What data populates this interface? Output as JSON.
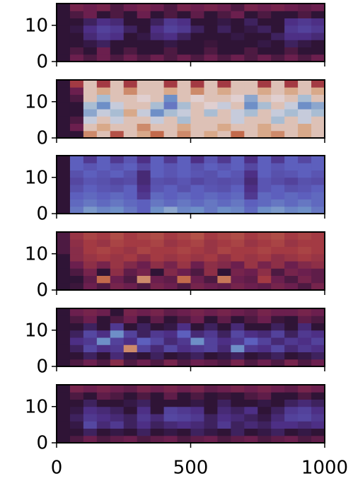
{
  "chart_data": [
    {
      "type": "heatmap",
      "xlim": [
        0,
        1000
      ],
      "ylim": [
        0,
        16
      ],
      "xticks": [
        0,
        500,
        1000
      ],
      "yticks": [
        0,
        10
      ],
      "show_xticklabels": false,
      "clim": [
        0,
        1
      ],
      "colormap": [
        "#e2d9e2",
        "#a9bdd3",
        "#6e8fc7",
        "#5d5fbd",
        "#4d2f85",
        "#2f1436",
        "#6b1f4e",
        "#a33a43",
        "#c26a4c",
        "#d8a98a",
        "#e2d9e2"
      ],
      "z": [
        [
          0.5,
          0.6,
          0.55,
          0.6,
          0.55,
          0.6,
          0.55,
          0.6,
          0.55,
          0.6,
          0.55,
          0.6,
          0.55,
          0.6,
          0.55,
          0.6,
          0.55,
          0.6,
          0.55,
          0.6
        ],
        [
          0.5,
          0.55,
          0.5,
          0.6,
          0.5,
          0.55,
          0.5,
          0.5,
          0.55,
          0.5,
          0.5,
          0.55,
          0.5,
          0.5,
          0.55,
          0.5,
          0.5,
          0.55,
          0.5,
          0.5
        ],
        [
          0.5,
          0.5,
          0.48,
          0.45,
          0.5,
          0.5,
          0.5,
          0.5,
          0.48,
          0.5,
          0.5,
          0.52,
          0.5,
          0.5,
          0.5,
          0.48,
          0.5,
          0.45,
          0.48,
          0.5
        ],
        [
          0.5,
          0.5,
          0.42,
          0.38,
          0.4,
          0.5,
          0.48,
          0.42,
          0.4,
          0.45,
          0.5,
          0.5,
          0.5,
          0.48,
          0.5,
          0.5,
          0.45,
          0.4,
          0.4,
          0.42
        ],
        [
          0.5,
          0.48,
          0.4,
          0.36,
          0.38,
          0.45,
          0.5,
          0.4,
          0.36,
          0.38,
          0.45,
          0.5,
          0.45,
          0.5,
          0.48,
          0.45,
          0.5,
          0.38,
          0.36,
          0.38
        ],
        [
          0.5,
          0.5,
          0.45,
          0.4,
          0.42,
          0.5,
          0.5,
          0.45,
          0.38,
          0.4,
          0.5,
          0.5,
          0.48,
          0.5,
          0.45,
          0.5,
          0.5,
          0.4,
          0.38,
          0.4
        ],
        [
          0.5,
          0.55,
          0.6,
          0.5,
          0.55,
          0.5,
          0.6,
          0.5,
          0.55,
          0.5,
          0.58,
          0.5,
          0.55,
          0.6,
          0.5,
          0.55,
          0.5,
          0.5,
          0.55,
          0.5
        ],
        [
          0.5,
          0.62,
          0.6,
          0.62,
          0.55,
          0.6,
          0.62,
          0.6,
          0.55,
          0.62,
          0.6,
          0.62,
          0.6,
          0.55,
          0.62,
          0.6,
          0.62,
          0.6,
          0.58,
          0.6
        ]
      ]
    },
    {
      "type": "heatmap",
      "xlim": [
        0,
        1000
      ],
      "ylim": [
        0,
        16
      ],
      "xticks": [
        0,
        500,
        1000
      ],
      "yticks": [
        0,
        10
      ],
      "show_xticklabels": false,
      "clim": [
        0,
        1
      ],
      "colormap": [
        "#e2d9e2",
        "#a9bdd3",
        "#6e8fc7",
        "#5d5fbd",
        "#4d2f85",
        "#2f1436",
        "#6b1f4e",
        "#a33a43",
        "#c26a4c",
        "#d8a98a",
        "#e2d9e2"
      ],
      "z": [
        [
          0.5,
          0.5,
          0.85,
          0.95,
          0.75,
          0.95,
          0.9,
          0.8,
          0.95,
          0.85,
          0.95,
          0.9,
          0.95,
          0.8,
          0.95,
          0.9,
          0.85,
          0.95,
          0.9,
          0.95
        ],
        [
          0.5,
          0.6,
          0.95,
          0.9,
          0.95,
          0.95,
          0.85,
          0.95,
          0.95,
          0.9,
          0.95,
          0.95,
          0.9,
          0.95,
          0.95,
          0.9,
          0.95,
          0.95,
          0.9,
          0.95
        ],
        [
          0.5,
          0.55,
          0.05,
          0.95,
          0.05,
          0.95,
          0.95,
          0.05,
          0.95,
          0.1,
          0.95,
          0.95,
          0.95,
          0.05,
          0.95,
          0.95,
          0.1,
          0.95,
          0.05,
          0.95
        ],
        [
          0.5,
          0.5,
          0.15,
          0.05,
          0.1,
          0.9,
          0.05,
          0.2,
          0.1,
          0.05,
          0.95,
          0.1,
          0.95,
          0.05,
          0.1,
          0.95,
          0.05,
          0.1,
          0.05,
          0.1
        ],
        [
          0.5,
          0.5,
          0.1,
          0.2,
          0.05,
          0.95,
          0.95,
          0.1,
          0.25,
          0.1,
          0.95,
          0.98,
          0.05,
          0.95,
          0.2,
          0.1,
          0.95,
          0.05,
          0.2,
          0.15
        ],
        [
          0.5,
          0.55,
          0.95,
          0.1,
          0.95,
          0.95,
          0.98,
          0.95,
          0.2,
          0.95,
          0.98,
          0.95,
          0.95,
          0.98,
          0.15,
          0.95,
          0.98,
          0.95,
          0.1,
          0.95
        ],
        [
          0.5,
          0.6,
          0.95,
          0.9,
          0.95,
          0.85,
          0.95,
          0.95,
          0.9,
          0.95,
          0.85,
          0.95,
          0.9,
          0.95,
          0.95,
          0.9,
          0.95,
          0.9,
          0.95,
          0.9
        ],
        [
          0.5,
          0.7,
          0.95,
          0.7,
          0.95,
          0.7,
          0.95,
          0.95,
          0.7,
          0.95,
          0.7,
          0.95,
          0.7,
          0.95,
          0.95,
          0.7,
          0.95,
          0.7,
          0.95,
          0.7
        ]
      ]
    },
    {
      "type": "heatmap",
      "xlim": [
        0,
        1000
      ],
      "ylim": [
        0,
        16
      ],
      "xticks": [
        0,
        500,
        1000
      ],
      "yticks": [
        0,
        10
      ],
      "show_xticklabels": false,
      "clim": [
        0,
        1
      ],
      "colormap": [
        "#e2d9e2",
        "#a9bdd3",
        "#6e8fc7",
        "#5d5fbd",
        "#4d2f85",
        "#2f1436",
        "#6b1f4e",
        "#a33a43",
        "#c26a4c",
        "#d8a98a",
        "#e2d9e2"
      ],
      "z": [
        [
          0.5,
          0.25,
          0.18,
          0.22,
          0.2,
          0.25,
          0.3,
          0.2,
          0.15,
          0.22,
          0.2,
          0.25,
          0.2,
          0.22,
          0.28,
          0.2,
          0.18,
          0.22,
          0.2,
          0.25
        ],
        [
          0.5,
          0.28,
          0.25,
          0.28,
          0.25,
          0.28,
          0.3,
          0.25,
          0.28,
          0.25,
          0.28,
          0.25,
          0.28,
          0.25,
          0.3,
          0.28,
          0.25,
          0.28,
          0.25,
          0.28
        ],
        [
          0.5,
          0.3,
          0.28,
          0.3,
          0.28,
          0.3,
          0.38,
          0.28,
          0.3,
          0.28,
          0.3,
          0.28,
          0.3,
          0.28,
          0.38,
          0.28,
          0.3,
          0.28,
          0.3,
          0.28
        ],
        [
          0.5,
          0.33,
          0.3,
          0.32,
          0.33,
          0.3,
          0.4,
          0.32,
          0.3,
          0.33,
          0.3,
          0.32,
          0.33,
          0.3,
          0.4,
          0.32,
          0.3,
          0.33,
          0.32,
          0.3
        ],
        [
          0.5,
          0.35,
          0.32,
          0.33,
          0.35,
          0.34,
          0.42,
          0.33,
          0.34,
          0.32,
          0.35,
          0.33,
          0.34,
          0.33,
          0.42,
          0.32,
          0.34,
          0.36,
          0.33,
          0.34
        ],
        [
          0.5,
          0.33,
          0.3,
          0.32,
          0.3,
          0.33,
          0.42,
          0.3,
          0.32,
          0.3,
          0.32,
          0.33,
          0.3,
          0.32,
          0.4,
          0.3,
          0.33,
          0.32,
          0.3,
          0.32
        ],
        [
          0.5,
          0.3,
          0.32,
          0.3,
          0.32,
          0.3,
          0.35,
          0.3,
          0.32,
          0.3,
          0.33,
          0.3,
          0.32,
          0.3,
          0.35,
          0.3,
          0.32,
          0.3,
          0.3,
          0.3
        ],
        [
          0.5,
          0.3,
          0.38,
          0.3,
          0.38,
          0.32,
          0.4,
          0.3,
          0.38,
          0.3,
          0.4,
          0.32,
          0.38,
          0.3,
          0.4,
          0.3,
          0.38,
          0.3,
          0.35,
          0.3
        ]
      ]
    },
    {
      "type": "heatmap",
      "xlim": [
        0,
        1000
      ],
      "ylim": [
        0,
        16
      ],
      "xticks": [
        0,
        500,
        1000
      ],
      "yticks": [
        0,
        10
      ],
      "show_xticklabels": false,
      "clim": [
        0,
        1
      ],
      "colormap": [
        "#e2d9e2",
        "#a9bdd3",
        "#6e8fc7",
        "#5d5fbd",
        "#4d2f85",
        "#2f1436",
        "#6b1f4e",
        "#a33a43",
        "#c26a4c",
        "#d8a98a",
        "#e2d9e2"
      ],
      "z": [
        [
          0.5,
          0.52,
          0.6,
          0.55,
          0.62,
          0.6,
          0.55,
          0.62,
          0.6,
          0.55,
          0.62,
          0.6,
          0.58,
          0.62,
          0.6,
          0.58,
          0.62,
          0.6,
          0.55,
          0.62
        ],
        [
          0.5,
          0.5,
          0.58,
          0.8,
          0.6,
          0.55,
          0.85,
          0.6,
          0.58,
          0.8,
          0.6,
          0.55,
          0.82,
          0.6,
          0.58,
          0.7,
          0.6,
          0.55,
          0.62,
          0.58
        ],
        [
          0.5,
          0.55,
          0.62,
          0.5,
          0.66,
          0.58,
          0.62,
          0.5,
          0.64,
          0.6,
          0.55,
          0.66,
          0.5,
          0.62,
          0.6,
          0.66,
          0.55,
          0.62,
          0.6,
          0.58
        ],
        [
          0.5,
          0.6,
          0.66,
          0.62,
          0.68,
          0.64,
          0.6,
          0.66,
          0.62,
          0.68,
          0.6,
          0.66,
          0.64,
          0.6,
          0.68,
          0.62,
          0.66,
          0.6,
          0.64,
          0.66
        ],
        [
          0.5,
          0.65,
          0.68,
          0.7,
          0.68,
          0.7,
          0.66,
          0.7,
          0.68,
          0.7,
          0.68,
          0.7,
          0.66,
          0.7,
          0.68,
          0.7,
          0.66,
          0.68,
          0.7,
          0.68
        ],
        [
          0.55,
          0.65,
          0.7,
          0.72,
          0.7,
          0.68,
          0.72,
          0.7,
          0.7,
          0.72,
          0.7,
          0.68,
          0.72,
          0.7,
          0.7,
          0.72,
          0.7,
          0.7,
          0.72,
          0.7
        ],
        [
          0.55,
          0.66,
          0.7,
          0.68,
          0.72,
          0.7,
          0.7,
          0.72,
          0.68,
          0.7,
          0.72,
          0.68,
          0.7,
          0.72,
          0.68,
          0.7,
          0.72,
          0.68,
          0.7,
          0.7
        ],
        [
          0.55,
          0.68,
          0.72,
          0.7,
          0.74,
          0.7,
          0.72,
          0.74,
          0.7,
          0.72,
          0.75,
          0.7,
          0.72,
          0.74,
          0.7,
          0.72,
          0.74,
          0.7,
          0.72,
          0.7
        ]
      ]
    },
    {
      "type": "heatmap",
      "xlim": [
        0,
        1000
      ],
      "ylim": [
        0,
        16
      ],
      "xticks": [
        0,
        500,
        1000
      ],
      "yticks": [
        0,
        10
      ],
      "show_xticklabels": false,
      "clim": [
        0,
        1
      ],
      "colormap": [
        "#e2d9e2",
        "#a9bdd3",
        "#6e8fc7",
        "#5d5fbd",
        "#4d2f85",
        "#2f1436",
        "#6b1f4e",
        "#a33a43",
        "#c26a4c",
        "#d8a98a",
        "#e2d9e2"
      ],
      "z": [
        [
          0.5,
          0.55,
          0.6,
          0.55,
          0.65,
          0.55,
          0.6,
          0.55,
          0.62,
          0.55,
          0.6,
          0.58,
          0.55,
          0.62,
          0.55,
          0.6,
          0.55,
          0.62,
          0.55,
          0.6
        ],
        [
          0.5,
          0.5,
          0.45,
          0.5,
          0.42,
          0.48,
          0.5,
          0.45,
          0.5,
          0.48,
          0.45,
          0.5,
          0.48,
          0.45,
          0.5,
          0.48,
          0.45,
          0.5,
          0.48,
          0.45
        ],
        [
          0.5,
          0.45,
          0.35,
          0.4,
          0.38,
          0.85,
          0.36,
          0.42,
          0.35,
          0.4,
          0.38,
          0.36,
          0.42,
          0.2,
          0.38,
          0.4,
          0.35,
          0.42,
          0.38,
          0.4
        ],
        [
          0.5,
          0.4,
          0.38,
          0.2,
          0.36,
          0.4,
          0.3,
          0.35,
          0.42,
          0.38,
          0.2,
          0.36,
          0.4,
          0.38,
          0.3,
          0.36,
          0.42,
          0.38,
          0.4,
          0.36
        ],
        [
          0.5,
          0.45,
          0.35,
          0.4,
          0.2,
          0.36,
          0.45,
          0.38,
          0.4,
          0.3,
          0.42,
          0.38,
          0.45,
          0.35,
          0.4,
          0.42,
          0.36,
          0.45,
          0.38,
          0.4
        ],
        [
          0.5,
          0.5,
          0.45,
          0.5,
          0.38,
          0.5,
          0.45,
          0.5,
          0.48,
          0.4,
          0.5,
          0.45,
          0.5,
          0.42,
          0.5,
          0.5,
          0.45,
          0.5,
          0.42,
          0.5
        ],
        [
          0.5,
          0.55,
          0.6,
          0.5,
          0.55,
          0.6,
          0.5,
          0.58,
          0.5,
          0.55,
          0.6,
          0.5,
          0.58,
          0.5,
          0.55,
          0.6,
          0.52,
          0.5,
          0.58,
          0.55
        ],
        [
          0.5,
          0.6,
          0.62,
          0.6,
          0.5,
          0.62,
          0.6,
          0.62,
          0.58,
          0.6,
          0.62,
          0.6,
          0.62,
          0.6,
          0.58,
          0.62,
          0.6,
          0.6,
          0.62,
          0.6
        ]
      ]
    },
    {
      "type": "heatmap",
      "xlim": [
        0,
        1000
      ],
      "ylim": [
        0,
        16
      ],
      "xticks": [
        0,
        500,
        1000
      ],
      "yticks": [
        0,
        10
      ],
      "show_xticklabels": true,
      "clim": [
        0,
        1
      ],
      "colormap": [
        "#e2d9e2",
        "#a9bdd3",
        "#6e8fc7",
        "#5d5fbd",
        "#4d2f85",
        "#2f1436",
        "#6b1f4e",
        "#a33a43",
        "#c26a4c",
        "#d8a98a",
        "#e2d9e2"
      ],
      "z": [
        [
          0.5,
          0.55,
          0.6,
          0.55,
          0.58,
          0.6,
          0.55,
          0.58,
          0.6,
          0.55,
          0.58,
          0.6,
          0.55,
          0.58,
          0.6,
          0.55,
          0.58,
          0.6,
          0.55,
          0.58
        ],
        [
          0.5,
          0.5,
          0.45,
          0.5,
          0.48,
          0.5,
          0.45,
          0.5,
          0.48,
          0.5,
          0.45,
          0.48,
          0.5,
          0.45,
          0.5,
          0.48,
          0.45,
          0.5,
          0.48,
          0.5
        ],
        [
          0.5,
          0.48,
          0.35,
          0.42,
          0.38,
          0.45,
          0.4,
          0.45,
          0.42,
          0.4,
          0.42,
          0.45,
          0.38,
          0.45,
          0.42,
          0.45,
          0.4,
          0.4,
          0.42,
          0.4
        ],
        [
          0.5,
          0.45,
          0.38,
          0.4,
          0.42,
          0.45,
          0.38,
          0.42,
          0.35,
          0.36,
          0.38,
          0.45,
          0.4,
          0.42,
          0.45,
          0.48,
          0.42,
          0.36,
          0.35,
          0.38
        ],
        [
          0.5,
          0.48,
          0.4,
          0.42,
          0.45,
          0.5,
          0.4,
          0.5,
          0.36,
          0.38,
          0.4,
          0.5,
          0.42,
          0.45,
          0.4,
          0.5,
          0.45,
          0.38,
          0.36,
          0.4
        ],
        [
          0.5,
          0.5,
          0.45,
          0.5,
          0.5,
          0.48,
          0.45,
          0.5,
          0.5,
          0.5,
          0.48,
          0.5,
          0.45,
          0.5,
          0.5,
          0.48,
          0.5,
          0.45,
          0.42,
          0.45
        ],
        [
          0.5,
          0.55,
          0.5,
          0.58,
          0.55,
          0.5,
          0.55,
          0.5,
          0.58,
          0.5,
          0.55,
          0.5,
          0.52,
          0.5,
          0.55,
          0.58,
          0.5,
          0.5,
          0.55,
          0.5
        ],
        [
          0.5,
          0.62,
          0.6,
          0.62,
          0.6,
          0.58,
          0.62,
          0.6,
          0.62,
          0.6,
          0.62,
          0.58,
          0.6,
          0.62,
          0.6,
          0.62,
          0.6,
          0.58,
          0.62,
          0.6
        ]
      ]
    }
  ]
}
